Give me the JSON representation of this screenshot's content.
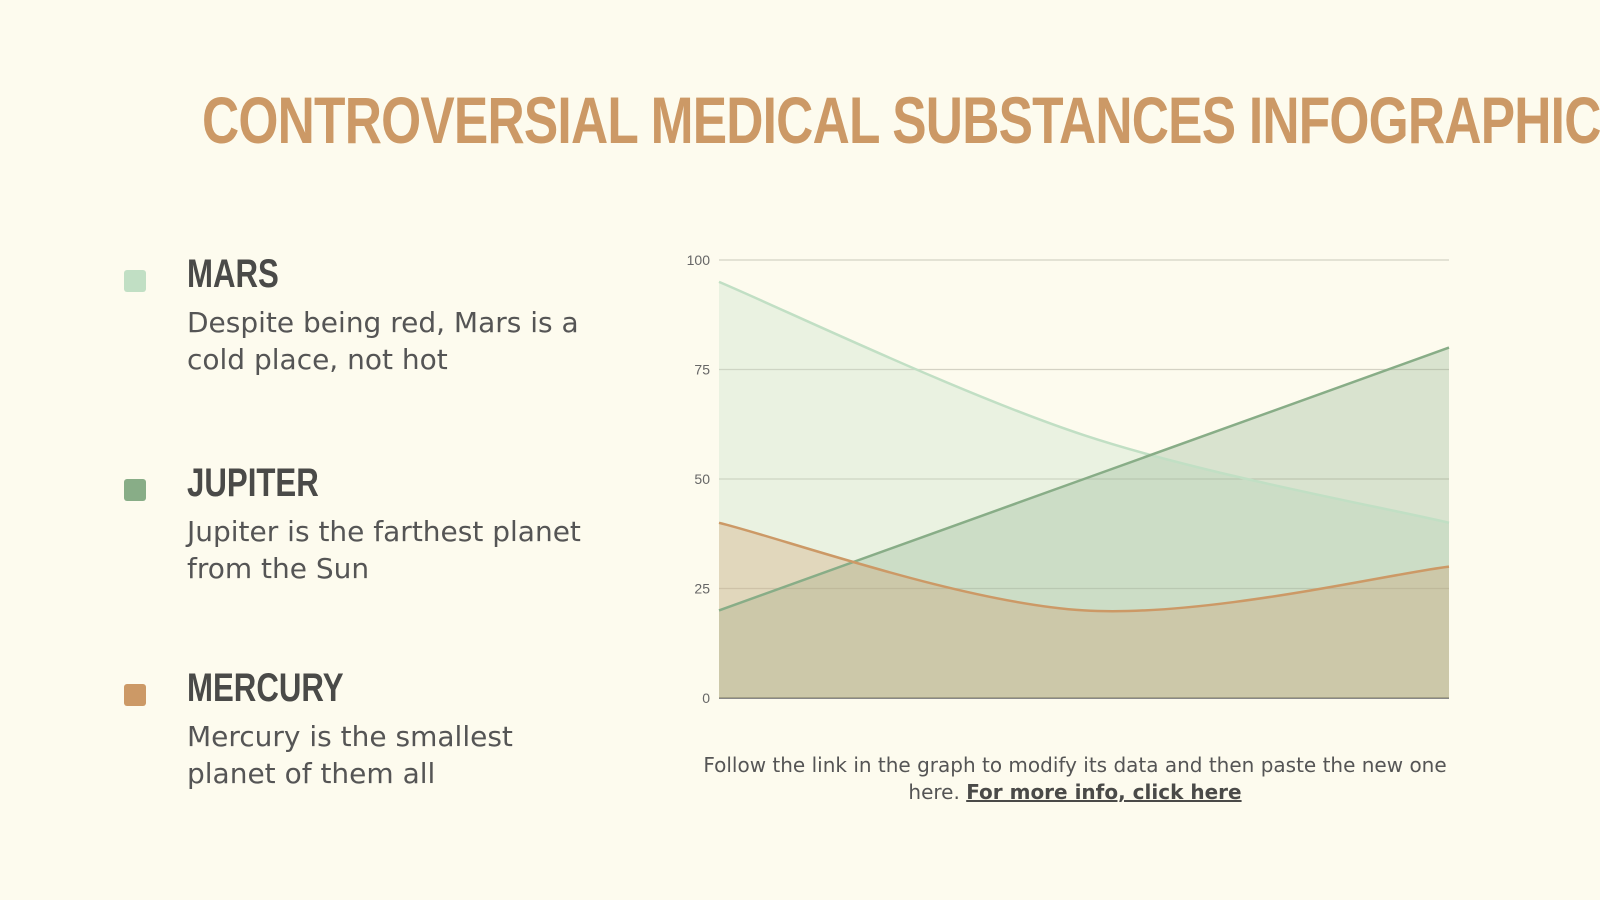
{
  "title": "CONTROVERSIAL MEDICAL SUBSTANCES INFOGRAPHICS",
  "legend_items": [
    {
      "name": "MARS",
      "description": "Despite being red, Mars is a cold place, not hot",
      "color": "#c1dfc4"
    },
    {
      "name": "JUPITER",
      "description": "Jupiter is the farthest planet from the Sun",
      "color": "#88ad87"
    },
    {
      "name": "MERCURY",
      "description": "Mercury is the smallest planet of them all",
      "color": "#cc9966"
    }
  ],
  "footer": {
    "text": "Follow the link in the graph to modify its data and then paste the new one here.",
    "link": "For more info, click here"
  },
  "chart_data": {
    "type": "area",
    "x": [
      1,
      2,
      3
    ],
    "ylim": [
      0,
      100
    ],
    "yticks": [
      "0",
      "25",
      "50",
      "75",
      "100"
    ],
    "grid": true,
    "smooth": true,
    "series": [
      {
        "name": "MARS",
        "values": [
          95,
          60,
          40
        ],
        "color": "#c1dfc4"
      },
      {
        "name": "JUPITER",
        "values": [
          20,
          50,
          80
        ],
        "color": "#88ad87"
      },
      {
        "name": "MERCURY",
        "values": [
          40,
          20,
          30
        ],
        "color": "#cc9966"
      }
    ]
  }
}
